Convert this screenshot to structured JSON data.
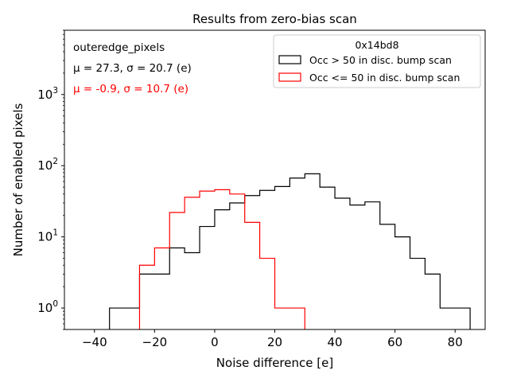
{
  "chart_data": {
    "type": "histogram",
    "title": "Results from zero-bias scan",
    "xlabel": "Noise difference [e]",
    "ylabel": "Number of enabled pixels",
    "xlim": [
      -50,
      90
    ],
    "ylim": [
      0.5,
      8000
    ],
    "yscale": "log",
    "xticks": [
      -40,
      -20,
      0,
      20,
      40,
      60,
      80
    ],
    "yticks": [
      1,
      10,
      100,
      1000
    ],
    "yticks_minor_from": 0.5,
    "yticks_minor_to": 8000,
    "bin_width": 5,
    "series": [
      {
        "name": "Occ > 50 in disc. bump scan",
        "color": "#000000",
        "bin_edges": [
          -35,
          -30,
          -25,
          -20,
          -15,
          -10,
          -5,
          0,
          5,
          10,
          15,
          20,
          25,
          30,
          35,
          40,
          45,
          50,
          55,
          60,
          65,
          70,
          75,
          80,
          85
        ],
        "counts": [
          1,
          1,
          3,
          3,
          7,
          6,
          14,
          24,
          30,
          38,
          45,
          51,
          67,
          77,
          50,
          35,
          28,
          31,
          15,
          10,
          5,
          3,
          1,
          1
        ]
      },
      {
        "name": "Occ <= 50 in disc. bump scan",
        "color": "#ff0000",
        "bin_edges": [
          -25,
          -20,
          -15,
          -10,
          -5,
          0,
          5,
          10,
          15,
          20,
          25,
          30
        ],
        "counts": [
          4,
          7,
          22,
          36,
          44,
          46,
          40,
          16,
          5,
          1,
          1
        ]
      }
    ],
    "legend": {
      "title": "0x14bd8",
      "placement": "top-right"
    },
    "annotations": [
      {
        "text": "outeredge_pixels",
        "color": "#000000"
      },
      {
        "text": "μ = 27.3, σ = 20.7 (e)",
        "color": "#000000"
      },
      {
        "text": "μ = -0.9, σ = 10.7 (e)",
        "color": "#ff0000"
      }
    ],
    "grid": false
  }
}
